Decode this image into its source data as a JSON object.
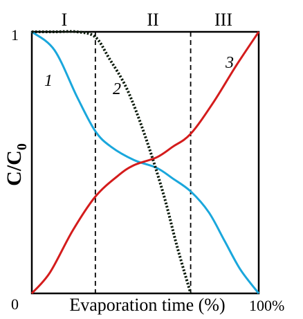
{
  "chart_data": {
    "type": "line",
    "ylabel_main": "C/C",
    "ylabel_sub": "0",
    "xlabel": "Evaporation time (%)",
    "x_tick_labels": [
      "0",
      "100%"
    ],
    "y_tick_labels": [
      "1"
    ],
    "xlim": [
      0,
      100
    ],
    "ylim": [
      0,
      1
    ],
    "grid": false,
    "regions": [
      {
        "label": "I",
        "x_start": 0,
        "x_end": 28
      },
      {
        "label": "II",
        "x_start": 28,
        "x_end": 70
      },
      {
        "label": "III",
        "x_start": 70,
        "x_end": 100
      }
    ],
    "boundaries": [
      28,
      70
    ],
    "series": [
      {
        "label": "1",
        "color": "#1aa7dc",
        "style": "solid",
        "x": [
          0,
          10,
          20,
          28,
          35,
          45,
          55,
          62,
          70,
          78,
          85,
          92,
          100
        ],
        "y": [
          1.0,
          0.93,
          0.75,
          0.62,
          0.56,
          0.51,
          0.48,
          0.44,
          0.39,
          0.31,
          0.2,
          0.09,
          0.0
        ]
      },
      {
        "label": "2",
        "color": "#0b1a0b",
        "style": "dotted",
        "x": [
          0,
          10,
          20,
          28,
          34,
          42,
          50,
          58,
          64,
          70
        ],
        "y": [
          1.0,
          1.0,
          1.0,
          0.98,
          0.9,
          0.78,
          0.6,
          0.38,
          0.18,
          0.0
        ]
      },
      {
        "label": "3",
        "color": "#d41c1c",
        "style": "solid",
        "x": [
          0,
          8,
          18,
          28,
          38,
          45,
          55,
          62,
          70,
          80,
          90,
          100
        ],
        "y": [
          0.0,
          0.08,
          0.24,
          0.37,
          0.45,
          0.49,
          0.52,
          0.56,
          0.61,
          0.73,
          0.87,
          1.0
        ]
      }
    ]
  }
}
